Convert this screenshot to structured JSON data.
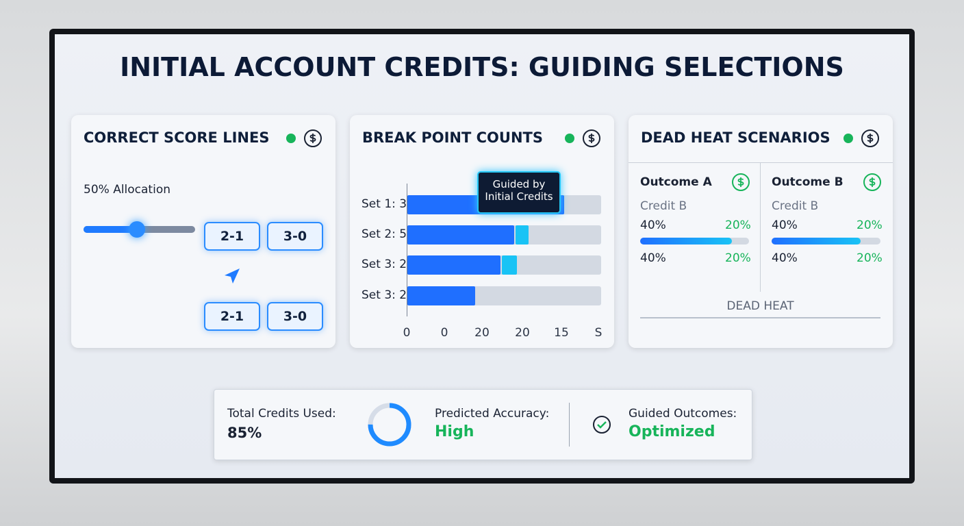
{
  "title": "INITIAL ACCOUNT CREDITS: GUIDING SELECTIONS",
  "panels": [
    {
      "title": "CORRECT SCORE LINES",
      "allocation_label": "50% Allocation",
      "slider_position": 48,
      "buttons": [
        [
          "2-1",
          "3-0"
        ],
        [
          "2-1",
          "3-0"
        ]
      ]
    },
    {
      "title": "BREAK POINT COUNTS",
      "tooltip": [
        "Guided by",
        "Initial Credits"
      ],
      "rows": [
        {
          "label": "Set 1: 3",
          "segments": [
            81
          ]
        },
        {
          "label": "Set 2: 5",
          "segments": [
            55,
            7
          ]
        },
        {
          "label": "Set 3: 2",
          "segments": [
            48,
            8
          ]
        },
        {
          "label": "Set 3: 2",
          "segments": [
            35
          ]
        }
      ],
      "axis_labels": [
        "0",
        "0",
        "20",
        "20",
        "15",
        "S"
      ]
    },
    {
      "title": "DEAD HEAT SCENARIOS",
      "outcomes": [
        {
          "name": "Outcome A",
          "sub": "Credit B",
          "left1": "40%",
          "right1": "20%",
          "fill": 84,
          "left2": "40%",
          "right2": "20%"
        },
        {
          "name": "Outcome B",
          "sub": "Credit B",
          "left1": "40%",
          "right1": "20%",
          "fill": 82,
          "left2": "40%",
          "right2": "20%"
        }
      ],
      "footer": "DEAD HEAT"
    }
  ],
  "summary": {
    "total_label": "Total Credits Used:",
    "total_value": "85%",
    "ring_percent": 75,
    "accuracy_label": "Predicted Accuracy:",
    "accuracy_value": "High",
    "outcomes_label": "Guided Outcomes:",
    "outcomes_value": "Optimized"
  }
}
